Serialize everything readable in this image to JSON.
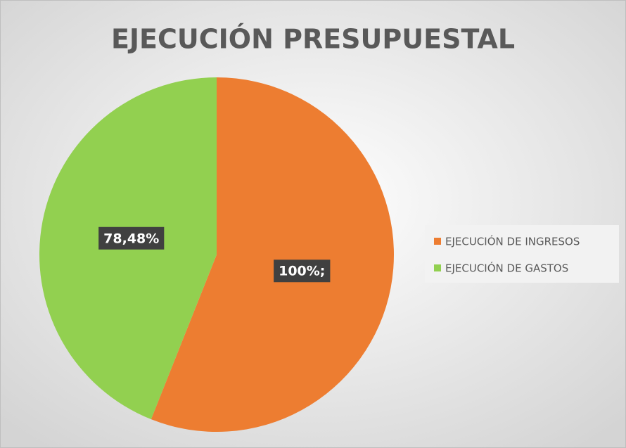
{
  "chart_data": {
    "type": "pie",
    "title": "EJECUCIÓN PRESUPUESTAL",
    "categories": [
      "EJECUCIÓN DE INGRESOS",
      "EJECUCIÓN DE GASTOS"
    ],
    "values": [
      100,
      78.48
    ],
    "value_labels": [
      "100%;",
      "78,48%"
    ],
    "colors": [
      "#ed7d31",
      "#92d050"
    ],
    "legend": "right"
  }
}
